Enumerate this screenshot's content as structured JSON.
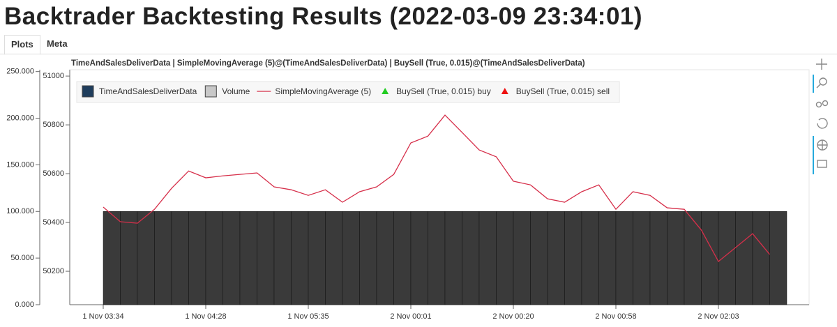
{
  "header": {
    "title": "Backtrader Backtesting Results (2022-03-09 23:34:01)",
    "tabs": [
      "Plots",
      "Meta"
    ]
  },
  "chart_data": {
    "type": "line",
    "title": "TimeAndSalesDeliverData | SimpleMovingAverage (5)@(TimeAndSalesDeliverData) | BuySell (True, 0.015)@(TimeAndSalesDeliverData)",
    "categories": [
      "1 Nov 03:34",
      null,
      null,
      null,
      null,
      null,
      "1 Nov 04:28",
      null,
      null,
      null,
      null,
      null,
      "1 Nov 05:35",
      null,
      null,
      null,
      null,
      null,
      "2 Nov 00:01",
      null,
      null,
      null,
      null,
      null,
      "2 Nov 00:20",
      null,
      null,
      null,
      null,
      null,
      "2 Nov 00:58",
      null,
      null,
      null,
      null,
      null,
      "2 Nov 02:03",
      null,
      null,
      null
    ],
    "series": [
      {
        "name": "Volume",
        "color": "#3a3a3a",
        "axis": "y2",
        "values": [
          100,
          100,
          100,
          100,
          100,
          100,
          100,
          100,
          100,
          100,
          100,
          100,
          100,
          100,
          100,
          100,
          100,
          100,
          100,
          100,
          100,
          100,
          100,
          100,
          100,
          100,
          100,
          100,
          100,
          100,
          100,
          100,
          100,
          100,
          100,
          100,
          100,
          100,
          100,
          100
        ]
      },
      {
        "name": "SimpleMovingAverage (5)",
        "color": "#d62f4a",
        "values": [
          50463,
          50403,
          50397,
          50454,
          50540,
          50611,
          50583,
          50591,
          50597,
          50603,
          50546,
          50534,
          50511,
          50534,
          50483,
          50526,
          50546,
          50597,
          50726,
          50754,
          50840,
          50769,
          50697,
          50669,
          50569,
          50554,
          50497,
          50483,
          50526,
          50554,
          50454,
          50526,
          50511,
          50460,
          50454,
          50369,
          50240,
          50297,
          50354,
          50269
        ]
      }
    ],
    "legend_items": [
      {
        "name": "TimeAndSalesDeliverData",
        "color": "#1f3d5c",
        "marker": "square"
      },
      {
        "name": "Volume",
        "color": "#c8c8c8",
        "marker": "square"
      },
      {
        "name": "SimpleMovingAverage (5)",
        "color": "#d62f4a",
        "marker": "line"
      },
      {
        "name": "BuySell (True, 0.015) buy",
        "color": "#22cc22",
        "marker": "triangle"
      },
      {
        "name": "BuySell (True, 0.015) sell",
        "color": "#ee1111",
        "marker": "triangle"
      }
    ],
    "ylim": [
      50063,
      51026
    ],
    "yticks": [
      50200,
      50400,
      50600,
      50800,
      51000
    ],
    "y2lim": [
      0,
      252
    ],
    "y2ticks": [
      {
        "value": 0,
        "label": "0.000"
      },
      {
        "value": 50,
        "label": "50.000"
      },
      {
        "value": 100,
        "label": "100.000"
      },
      {
        "value": 150,
        "label": "150.000"
      },
      {
        "value": 200,
        "label": "200.000"
      },
      {
        "value": 250,
        "label": "250.000"
      }
    ],
    "grid": false
  }
}
